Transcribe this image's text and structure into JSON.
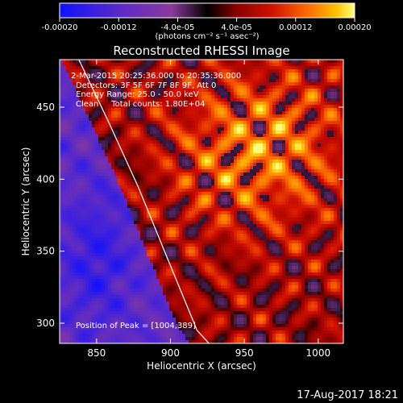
{
  "chart_data": {
    "type": "heatmap",
    "title": "Reconstructed RHESSI Image",
    "xlabel": "Heliocentric X (arcsec)",
    "ylabel": "Heliocentric Y (arcsec)",
    "xlim": [
      825,
      1017
    ],
    "ylim": [
      286,
      483
    ],
    "xticks": [
      850,
      900,
      950,
      1000
    ],
    "yticks": [
      300,
      350,
      400,
      450
    ],
    "colorbar": {
      "range": [
        -0.0002,
        0.0002
      ],
      "ticks": [
        "-0.00020",
        "-0.00012",
        "-4.0e-05",
        "4.0e-05",
        "0.00012",
        "0.00020"
      ],
      "tick_values": [
        -0.0002,
        -0.00012,
        -4e-05,
        4e-05,
        0.00012,
        0.0002
      ],
      "unit_label": "(photons cm⁻² s⁻¹ asec⁻²)"
    },
    "annotations": [
      "2-Mar-2015 20:25:36.000 to 20:35:36.000",
      "Detectors: 3F 5F 6F 7F 8F 9F, Att 0",
      "Energy Range: 25.0 - 50.0 keV",
      "Clean     Total counts: 1.80E+04"
    ],
    "peak_label": "Position of Peak = [1004,389]",
    "peak": [
      1004,
      389
    ],
    "limb_curve": {
      "x": [
        838,
        858,
        878,
        898,
        918,
        926
      ],
      "y": [
        483,
        440,
        395,
        345,
        295,
        286
      ]
    },
    "emission_region": "bright emission east of limb, x > ~875 arcsec"
  },
  "timestamp": "17-Aug-2017 18:21",
  "colors": {
    "background": "#000000",
    "foreground": "#ffffff",
    "colormap": [
      "#1010ff",
      "#5a2ac8",
      "#8a3a9a",
      "#000000",
      "#8a0000",
      "#d01000",
      "#ff6a00",
      "#ffc300",
      "#ffff80"
    ]
  }
}
